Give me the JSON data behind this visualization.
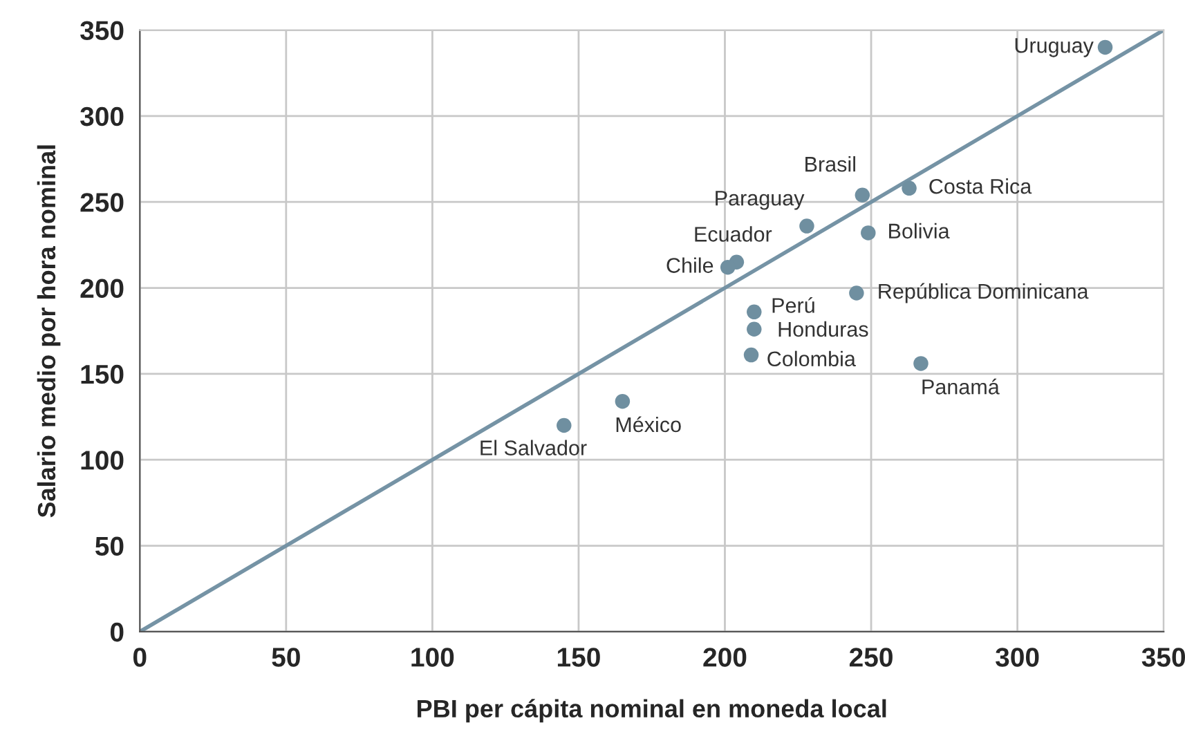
{
  "chart_data": {
    "type": "scatter",
    "xlabel": "PBI per cápita nominal en moneda local",
    "ylabel": "Salario medio por hora nominal",
    "xlim": [
      0,
      350
    ],
    "ylim": [
      0,
      350
    ],
    "xticks": [
      0,
      50,
      100,
      150,
      200,
      250,
      300,
      350
    ],
    "yticks": [
      0,
      50,
      100,
      150,
      200,
      250,
      300,
      350
    ],
    "grid": true,
    "marker": "circle",
    "series": [
      {
        "color": "#6f8fa0",
        "x": [
          330,
          263,
          247,
          249,
          228,
          204,
          201,
          245,
          210,
          210,
          209,
          267,
          165,
          145
        ],
        "values": [
          340,
          258,
          254,
          232,
          236,
          215,
          212,
          197,
          186,
          176,
          161,
          156,
          134,
          120
        ]
      },
      {
        "type": "line",
        "color": "#7593a5",
        "x": [
          0,
          350
        ],
        "values": [
          0,
          350
        ],
        "marker": "none"
      }
    ],
    "annotations": [
      {
        "text": "Uruguay",
        "x": 330,
        "y": 340
      },
      {
        "text": "Costa Rica",
        "x": 263,
        "y": 258
      },
      {
        "text": "Brasil",
        "x": 247,
        "y": 254
      },
      {
        "text": "Bolivia",
        "x": 249,
        "y": 232
      },
      {
        "text": "Paraguay",
        "x": 228.5,
        "y": 236.5
      },
      {
        "text": "Ecuador",
        "x": 204,
        "y": 215.5
      },
      {
        "text": "Chile",
        "x": 201.5,
        "y": 212
      },
      {
        "text": "República Dominicana",
        "x": 245.5,
        "y": 197
      },
      {
        "text": "Perú",
        "x": 210.5,
        "y": 186.5
      },
      {
        "text": "Honduras",
        "x": 210,
        "y": 176
      },
      {
        "text": "Colombia",
        "x": 209,
        "y": 161
      },
      {
        "text": "Panamá",
        "x": 267,
        "y": 156
      },
      {
        "text": "México",
        "x": 165,
        "y": 134
      },
      {
        "text": "El Salvador",
        "x": 145,
        "y": 120.5
      }
    ]
  }
}
